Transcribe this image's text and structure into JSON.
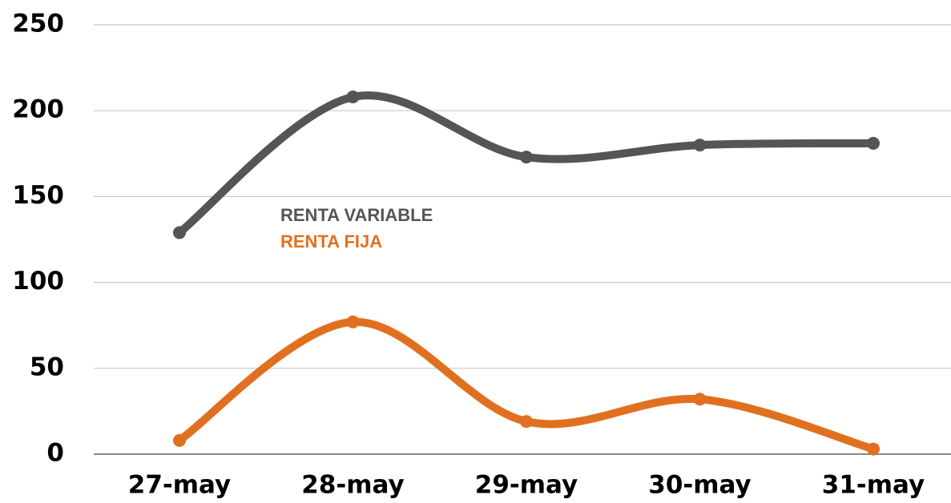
{
  "chart_data": {
    "type": "line",
    "categories": [
      "27-may",
      "28-may",
      "29-may",
      "30-may",
      "31-may"
    ],
    "series": [
      {
        "name": "RENTA VARIABLE",
        "color": "#555555",
        "values": [
          129,
          208,
          173,
          180,
          181
        ]
      },
      {
        "name": "RENTA FIJA",
        "color": "#e07020",
        "values": [
          8,
          77,
          19,
          32,
          3
        ]
      }
    ],
    "ylim": [
      0,
      250
    ],
    "yticks": [
      0,
      50,
      100,
      150,
      200,
      250
    ],
    "grid": true,
    "smooth": true
  }
}
